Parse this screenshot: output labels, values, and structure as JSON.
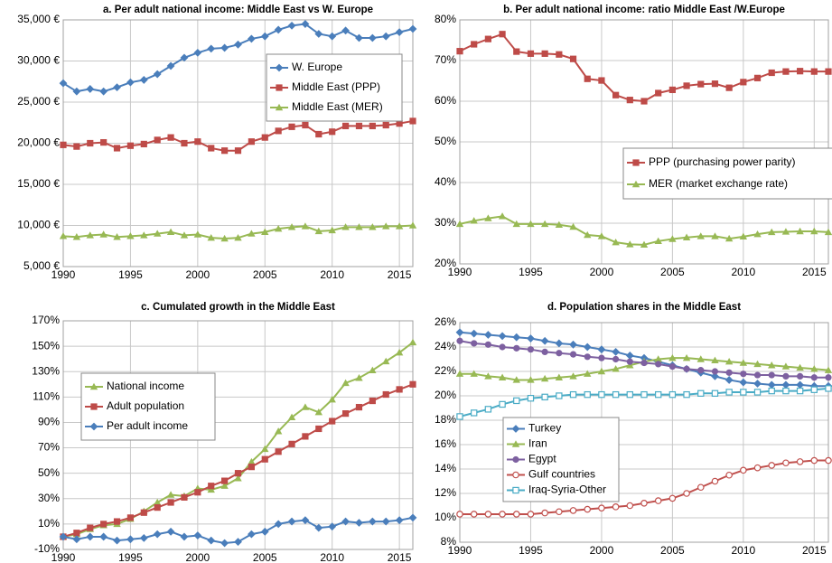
{
  "chart_data": [
    {
      "type": "line",
      "title": "a. Per adult national income: Middle East vs W. Europe",
      "x": [
        1990,
        1991,
        1992,
        1993,
        1994,
        1995,
        1996,
        1997,
        1998,
        1999,
        2000,
        2001,
        2002,
        2003,
        2004,
        2005,
        2006,
        2007,
        2008,
        2009,
        2010,
        2011,
        2012,
        2013,
        2014,
        2015,
        2016
      ],
      "xlim": [
        1990,
        2016
      ],
      "xticks": [
        1990,
        1995,
        2000,
        2005,
        2010,
        2015
      ],
      "ylim": [
        5000,
        35000
      ],
      "yticks": [
        {
          "value": 5000,
          "label": "5,000 €"
        },
        {
          "value": 10000,
          "label": "10,000 €"
        },
        {
          "value": 15000,
          "label": "15,000 €"
        },
        {
          "value": 20000,
          "label": "20,000 €"
        },
        {
          "value": 25000,
          "label": "25,000 €"
        },
        {
          "value": 30000,
          "label": "30,000 €"
        },
        {
          "value": 35000,
          "label": "35,000 €"
        }
      ],
      "grid": true,
      "legend": "upper right",
      "series": [
        {
          "name": "W. Europe",
          "color": "#4a7ebb",
          "marker": "diamond",
          "values": [
            27300,
            26300,
            26600,
            26300,
            26800,
            27400,
            27700,
            28400,
            29400,
            30400,
            31000,
            31500,
            31600,
            32000,
            32700,
            33000,
            33800,
            34300,
            34500,
            33300,
            33000,
            33700,
            32800,
            32800,
            33000,
            33500,
            33900
          ]
        },
        {
          "name": "Middle East (PPP)",
          "color": "#be4b48",
          "marker": "square",
          "values": [
            19800,
            19600,
            20000,
            20100,
            19400,
            19700,
            19900,
            20400,
            20700,
            20000,
            20200,
            19400,
            19100,
            19100,
            20200,
            20700,
            21500,
            22000,
            22200,
            21100,
            21400,
            22100,
            22100,
            22100,
            22200,
            22400,
            22700
          ]
        },
        {
          "name": "Middle East (MER)",
          "color": "#98b954",
          "marker": "triangle",
          "values": [
            8700,
            8600,
            8800,
            8900,
            8600,
            8700,
            8800,
            9000,
            9200,
            8800,
            8900,
            8500,
            8400,
            8500,
            9000,
            9200,
            9600,
            9800,
            9900,
            9300,
            9400,
            9800,
            9800,
            9800,
            9900,
            9900,
            10000
          ]
        }
      ]
    },
    {
      "type": "line",
      "title": "b. Per adult national income: ratio Middle East /W.Europe",
      "x": [
        1990,
        1991,
        1992,
        1993,
        1994,
        1995,
        1996,
        1997,
        1998,
        1999,
        2000,
        2001,
        2002,
        2003,
        2004,
        2005,
        2006,
        2007,
        2008,
        2009,
        2010,
        2011,
        2012,
        2013,
        2014,
        2015,
        2016
      ],
      "xlim": [
        1990,
        2016
      ],
      "xticks": [
        1990,
        1995,
        2000,
        2005,
        2010,
        2015
      ],
      "ylim": [
        20,
        80
      ],
      "yticks": [
        {
          "value": 20,
          "label": "20%"
        },
        {
          "value": 30,
          "label": "30%"
        },
        {
          "value": 40,
          "label": "40%"
        },
        {
          "value": 50,
          "label": "50%"
        },
        {
          "value": 60,
          "label": "60%"
        },
        {
          "value": 70,
          "label": "70%"
        },
        {
          "value": 80,
          "label": "80%"
        }
      ],
      "grid": true,
      "legend": "center right",
      "series": [
        {
          "name": "PPP (purchasing power parity)",
          "color": "#be4b48",
          "marker": "square",
          "values": [
            72.3,
            74,
            75.3,
            76.5,
            72.2,
            71.7,
            71.7,
            71.5,
            70.4,
            65.5,
            65.1,
            61.5,
            60.3,
            60,
            62,
            62.8,
            63.8,
            64.2,
            64.3,
            63.3,
            64.7,
            65.7,
            67,
            67.3,
            67.4,
            67.3,
            67.3
          ]
        },
        {
          "name": "MER (market exchange rate)",
          "color": "#98b954",
          "marker": "triangle",
          "values": [
            29.8,
            30.6,
            31.2,
            31.7,
            29.8,
            29.8,
            29.8,
            29.6,
            29.1,
            27.1,
            26.8,
            25.3,
            24.8,
            24.7,
            25.6,
            26.1,
            26.5,
            26.8,
            26.8,
            26.2,
            26.7,
            27.3,
            27.8,
            27.9,
            28,
            28,
            27.8
          ]
        }
      ]
    },
    {
      "type": "line",
      "title": "c. Cumulated growth in the Middle East",
      "x": [
        1990,
        1991,
        1992,
        1993,
        1994,
        1995,
        1996,
        1997,
        1998,
        1999,
        2000,
        2001,
        2002,
        2003,
        2004,
        2005,
        2006,
        2007,
        2008,
        2009,
        2010,
        2011,
        2012,
        2013,
        2014,
        2015,
        2016
      ],
      "xlim": [
        1990,
        2016
      ],
      "xticks": [
        1990,
        1995,
        2000,
        2005,
        2010,
        2015
      ],
      "ylim": [
        -10,
        170
      ],
      "yticks": [
        {
          "value": -10,
          "label": "-10%"
        },
        {
          "value": 10,
          "label": "10%"
        },
        {
          "value": 30,
          "label": "30%"
        },
        {
          "value": 50,
          "label": "50%"
        },
        {
          "value": 70,
          "label": "70%"
        },
        {
          "value": 90,
          "label": "90%"
        },
        {
          "value": 110,
          "label": "110%"
        },
        {
          "value": 130,
          "label": "130%"
        },
        {
          "value": 150,
          "label": "150%"
        },
        {
          "value": 170,
          "label": "170%"
        }
      ],
      "grid": true,
      "legend": "upper left",
      "series": [
        {
          "name": "National income",
          "color": "#98b954",
          "marker": "triangle",
          "values": [
            0,
            2,
            6,
            9,
            10,
            14,
            20,
            27,
            33,
            32,
            38,
            37,
            40,
            46,
            59,
            69,
            83,
            94,
            102,
            98,
            108,
            121,
            125,
            131,
            138,
            145,
            153
          ]
        },
        {
          "name": "Adult population",
          "color": "#be4b48",
          "marker": "square",
          "values": [
            0,
            3,
            7,
            10,
            12,
            15,
            19,
            23,
            27,
            31,
            35,
            40,
            44,
            50,
            55,
            61,
            67,
            73,
            79,
            85,
            91,
            97,
            102,
            107,
            112,
            116,
            120
          ]
        },
        {
          "name": "Per adult income",
          "color": "#4a7ebb",
          "marker": "diamond",
          "values": [
            0,
            -2,
            0,
            0,
            -3,
            -2,
            -1,
            2,
            4,
            0,
            1,
            -3,
            -5,
            -4,
            2,
            4,
            10,
            12,
            13,
            7,
            8,
            12,
            11,
            12,
            12,
            13,
            15
          ]
        }
      ]
    },
    {
      "type": "line",
      "title": "d. Population shares in the Middle East",
      "x": [
        1990,
        1991,
        1992,
        1993,
        1994,
        1995,
        1996,
        1997,
        1998,
        1999,
        2000,
        2001,
        2002,
        2003,
        2004,
        2005,
        2006,
        2007,
        2008,
        2009,
        2010,
        2011,
        2012,
        2013,
        2014,
        2015,
        2016
      ],
      "xlim": [
        1990,
        2016
      ],
      "xticks": [
        1990,
        1995,
        2000,
        2005,
        2010,
        2015
      ],
      "ylim": [
        8,
        26
      ],
      "yticks": [
        {
          "value": 8,
          "label": "8%"
        },
        {
          "value": 10,
          "label": "10%"
        },
        {
          "value": 12,
          "label": "12%"
        },
        {
          "value": 14,
          "label": "14%"
        },
        {
          "value": 16,
          "label": "16%"
        },
        {
          "value": 18,
          "label": "18%"
        },
        {
          "value": 20,
          "label": "20%"
        },
        {
          "value": 22,
          "label": "22%"
        },
        {
          "value": 24,
          "label": "24%"
        },
        {
          "value": 26,
          "label": "26%"
        }
      ],
      "grid": true,
      "legend": "lower left",
      "series": [
        {
          "name": "Turkey",
          "color": "#4a7ebb",
          "marker": "diamond",
          "values": [
            25.2,
            25.1,
            25.0,
            24.9,
            24.8,
            24.7,
            24.5,
            24.3,
            24.2,
            24.0,
            23.8,
            23.6,
            23.3,
            23.1,
            22.8,
            22.5,
            22.2,
            21.9,
            21.6,
            21.3,
            21.1,
            21.0,
            20.9,
            20.9,
            20.9,
            20.8,
            20.8
          ]
        },
        {
          "name": "Iran",
          "color": "#98b954",
          "marker": "triangle",
          "values": [
            21.8,
            21.8,
            21.6,
            21.5,
            21.3,
            21.3,
            21.4,
            21.5,
            21.6,
            21.8,
            22.0,
            22.2,
            22.5,
            22.8,
            23.0,
            23.1,
            23.1,
            23.0,
            22.9,
            22.8,
            22.7,
            22.6,
            22.5,
            22.4,
            22.3,
            22.2,
            22.1
          ]
        },
        {
          "name": "Egypt",
          "color": "#7d60a0",
          "marker": "circle",
          "values": [
            24.5,
            24.3,
            24.2,
            24.0,
            23.9,
            23.8,
            23.6,
            23.5,
            23.4,
            23.2,
            23.1,
            23.0,
            22.8,
            22.7,
            22.6,
            22.4,
            22.2,
            22.1,
            22.0,
            21.9,
            21.8,
            21.7,
            21.7,
            21.6,
            21.6,
            21.5,
            21.5
          ]
        },
        {
          "name": "Gulf countries",
          "color": "#c0504d",
          "marker": "circle-open",
          "values": [
            10.3,
            10.3,
            10.3,
            10.3,
            10.3,
            10.3,
            10.4,
            10.5,
            10.6,
            10.7,
            10.8,
            10.9,
            11.0,
            11.2,
            11.4,
            11.6,
            12.0,
            12.5,
            13.0,
            13.5,
            13.9,
            14.1,
            14.3,
            14.5,
            14.6,
            14.7,
            14.7
          ]
        },
        {
          "name": "Iraq-Syria-Other",
          "color": "#4bacc6",
          "marker": "square-open",
          "values": [
            18.3,
            18.6,
            18.9,
            19.3,
            19.6,
            19.8,
            19.9,
            20.0,
            20.1,
            20.1,
            20.1,
            20.1,
            20.1,
            20.1,
            20.1,
            20.1,
            20.1,
            20.2,
            20.2,
            20.3,
            20.3,
            20.3,
            20.4,
            20.4,
            20.4,
            20.5,
            20.6
          ]
        }
      ]
    }
  ]
}
